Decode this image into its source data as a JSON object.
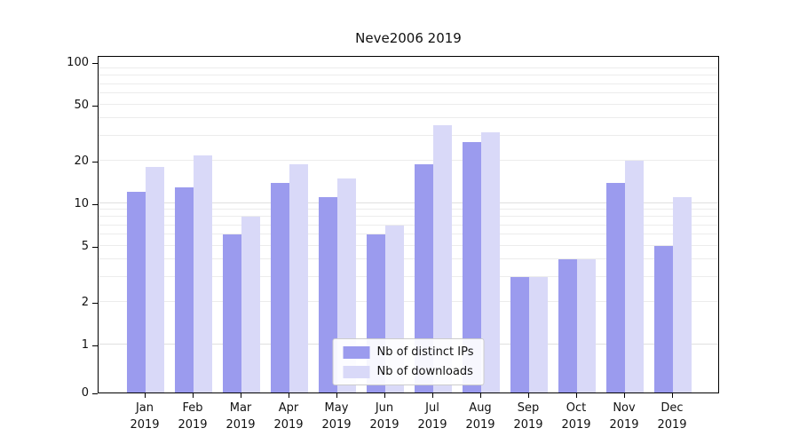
{
  "chart_data": {
    "type": "bar",
    "title": "Neve2006 2019",
    "x_year": "2019",
    "categories": [
      "Jan",
      "Feb",
      "Mar",
      "Apr",
      "May",
      "Jun",
      "Jul",
      "Aug",
      "Sep",
      "Oct",
      "Nov",
      "Dec"
    ],
    "series": [
      {
        "name": "Nb of distinct IPs",
        "color": "#9b9bee",
        "values": [
          12,
          13,
          6,
          14,
          11,
          6,
          19,
          27,
          3,
          4,
          14,
          5
        ]
      },
      {
        "name": "Nb of downloads",
        "color": "#d9d9f8",
        "values": [
          18,
          22,
          8,
          19,
          15,
          7,
          36,
          32,
          3,
          4,
          20,
          11
        ]
      }
    ],
    "yscale": "symlog",
    "yticks": [
      0,
      1,
      2,
      5,
      10,
      20,
      50,
      100
    ],
    "ylim": [
      0,
      100
    ],
    "grid": "horizontal, log minor lines",
    "legend_position": "lower center"
  }
}
